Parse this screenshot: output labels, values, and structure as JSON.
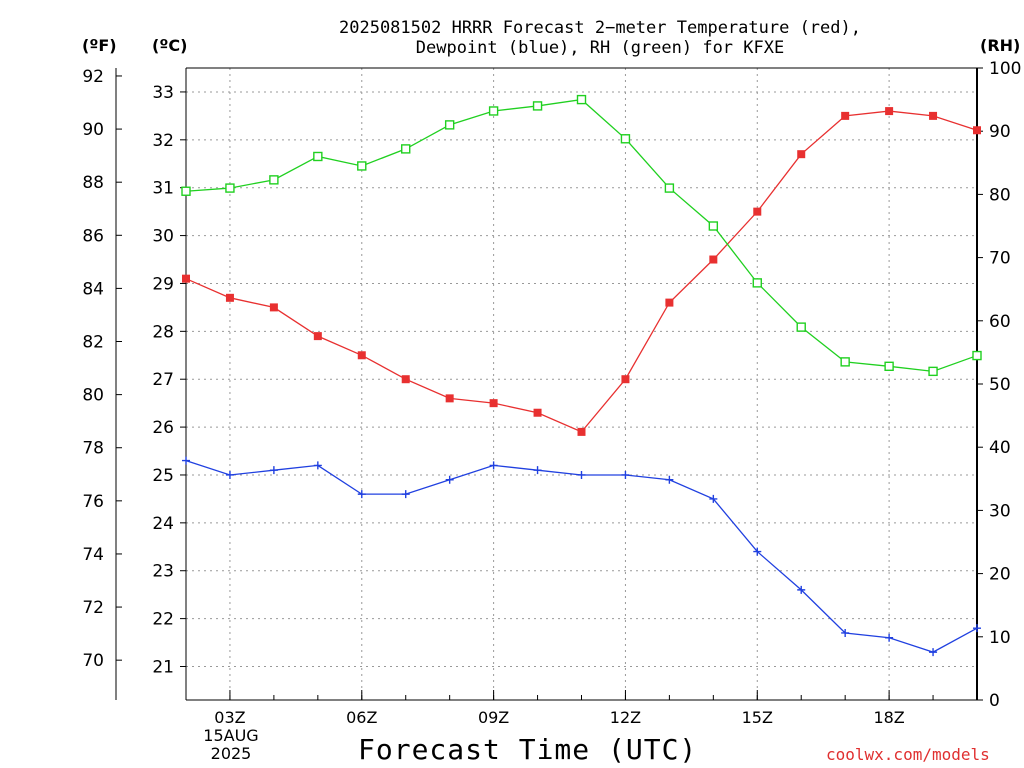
{
  "title_line1": "2025081502 HRRR Forecast 2−meter Temperature (red),",
  "title_line2": "Dewpoint (blue), RH (green) for KFXE",
  "unit_f": "(ºF)",
  "unit_c": "(ºC)",
  "unit_rh": "(RH)",
  "xlabel": "Forecast Time (UTC)",
  "credit": "coolwx.com/models",
  "date_line1": "15AUG",
  "date_line2": "2025",
  "colors": {
    "temperature": "#e83030",
    "dewpoint": "#2040e0",
    "rh": "#20d020",
    "grid": "#999999"
  },
  "chart_data": {
    "type": "line",
    "x_hours": [
      2,
      3,
      4,
      5,
      6,
      7,
      8,
      9,
      10,
      11,
      12,
      13,
      14,
      15,
      16,
      17,
      18,
      19,
      20
    ],
    "x_ticks": [
      {
        "hour": 3,
        "label": "03Z"
      },
      {
        "hour": 6,
        "label": "06Z"
      },
      {
        "hour": 9,
        "label": "09Z"
      },
      {
        "hour": 12,
        "label": "12Z"
      },
      {
        "hour": 15,
        "label": "15Z"
      },
      {
        "hour": 18,
        "label": "18Z"
      }
    ],
    "x_range": [
      2,
      20
    ],
    "y_left_c": {
      "range": [
        20.3,
        33.5
      ],
      "ticks": [
        21,
        22,
        23,
        24,
        25,
        26,
        27,
        28,
        29,
        30,
        31,
        32,
        33
      ]
    },
    "y_left_f": {
      "range": [
        68.5,
        92.3
      ],
      "ticks": [
        70,
        72,
        74,
        76,
        78,
        80,
        82,
        84,
        86,
        88,
        90,
        92
      ]
    },
    "y_right_rh": {
      "range": [
        0,
        100
      ],
      "ticks": [
        0,
        10,
        20,
        30,
        40,
        50,
        60,
        70,
        80,
        90,
        100
      ]
    },
    "grid": true,
    "series": [
      {
        "name": "Temperature",
        "axis": "c",
        "marker": "filled-square",
        "values": [
          29.1,
          28.7,
          28.5,
          27.9,
          27.5,
          27.0,
          26.6,
          26.5,
          26.3,
          25.9,
          27.0,
          28.6,
          29.5,
          30.5,
          31.7,
          32.5,
          32.6,
          32.5,
          32.2
        ]
      },
      {
        "name": "Dewpoint",
        "axis": "c",
        "marker": "plus",
        "values": [
          25.3,
          25.0,
          25.1,
          25.2,
          24.6,
          24.6,
          24.9,
          25.2,
          25.1,
          25.0,
          25.0,
          24.9,
          24.5,
          23.4,
          22.6,
          21.7,
          21.6,
          21.3,
          21.8
        ]
      },
      {
        "name": "RH",
        "axis": "rh",
        "marker": "open-square",
        "values": [
          80.5,
          81.0,
          82.3,
          86.0,
          84.5,
          87.2,
          91.0,
          93.2,
          94.0,
          95.0,
          88.8,
          81.0,
          75.0,
          66.0,
          59.0,
          53.5,
          52.8,
          52.0,
          54.5
        ]
      }
    ]
  }
}
